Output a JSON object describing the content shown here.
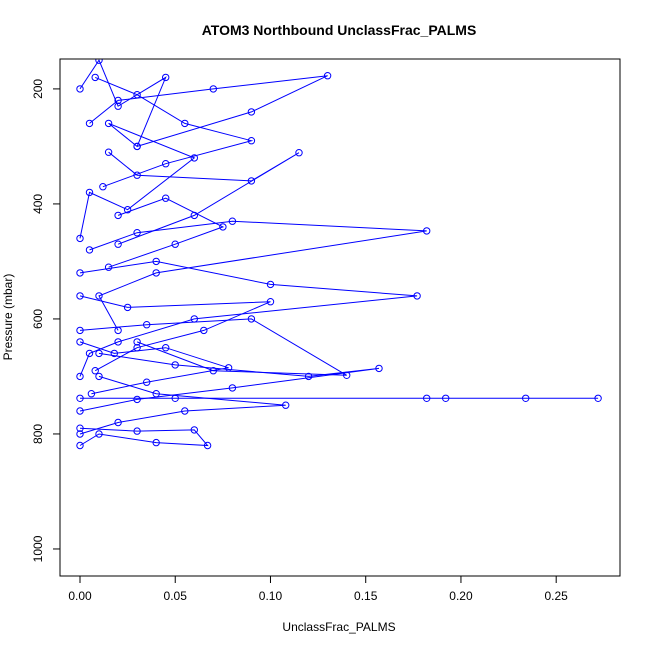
{
  "chart_data": {
    "type": "line",
    "title": "ATOM3 Northbound UnclassFrac_PALMS",
    "xlabel": "UnclassFrac_PALMS",
    "ylabel": "Pressure (mbar)",
    "xlim": [
      -0.0105,
      0.2835
    ],
    "ylim": [
      1047,
      148
    ],
    "y_reversed": true,
    "x_ticks": [
      0.0,
      0.05,
      0.1,
      0.15,
      0.2,
      0.25
    ],
    "x_tick_labels": [
      "0.00",
      "0.05",
      "0.10",
      "0.15",
      "0.20",
      "0.25"
    ],
    "y_ticks": [
      200,
      400,
      600,
      800,
      1000
    ],
    "y_tick_labels": [
      "200",
      "400",
      "600",
      "800",
      "1000"
    ],
    "grid": false,
    "legend": "none",
    "series_color": "#0000ff",
    "marker": "open-circle",
    "series": [
      {
        "x": [
          0.0,
          0.01,
          0.02,
          0.045,
          0.03,
          0.015,
          0.06,
          0.025,
          0.005,
          0.0
        ],
        "y": [
          200,
          150,
          230,
          180,
          300,
          260,
          320,
          410,
          380,
          460
        ]
      },
      {
        "x": [
          0.005,
          0.03,
          0.08,
          0.182,
          0.04,
          0.01,
          0.02
        ],
        "y": [
          480,
          450,
          430,
          447,
          520,
          560,
          620
        ]
      },
      {
        "x": [
          0.0,
          0.04,
          0.1,
          0.177,
          0.06,
          0.02,
          0.005,
          0.0
        ],
        "y": [
          520,
          500,
          540,
          560,
          600,
          640,
          660,
          700
        ]
      },
      {
        "x": [
          0.01,
          0.05,
          0.12,
          0.157,
          0.08,
          0.03,
          0.0
        ],
        "y": [
          660,
          680,
          700,
          686,
          720,
          740,
          760
        ]
      },
      {
        "x": [
          0.0,
          0.05,
          0.182,
          0.192,
          0.234,
          0.272
        ],
        "y": [
          738,
          738,
          738,
          738,
          738,
          738
        ]
      },
      {
        "x": [
          0.0,
          0.03,
          0.06,
          0.067,
          0.04,
          0.01,
          0.0
        ],
        "y": [
          790,
          795,
          793,
          820,
          815,
          800,
          820
        ]
      },
      {
        "x": [
          0.005,
          0.02,
          0.07,
          0.13,
          0.09,
          0.03
        ],
        "y": [
          260,
          220,
          200,
          177,
          240,
          300
        ]
      },
      {
        "x": [
          0.015,
          0.03,
          0.09,
          0.115,
          0.06,
          0.02
        ],
        "y": [
          310,
          350,
          360,
          311,
          420,
          470
        ]
      },
      {
        "x": [
          0.0,
          0.025,
          0.1,
          0.065,
          0.03,
          0.008
        ],
        "y": [
          560,
          580,
          570,
          620,
          650,
          690
        ]
      },
      {
        "x": [
          0.01,
          0.04,
          0.108,
          0.055,
          0.02,
          0.0
        ],
        "y": [
          700,
          730,
          750,
          760,
          780,
          800
        ]
      },
      {
        "x": [
          0.0,
          0.035,
          0.09,
          0.14,
          0.07,
          0.03
        ],
        "y": [
          620,
          610,
          600,
          698,
          690,
          640
        ]
      },
      {
        "x": [
          0.02,
          0.045,
          0.075,
          0.05,
          0.015
        ],
        "y": [
          420,
          390,
          440,
          470,
          510
        ]
      },
      {
        "x": [
          0.008,
          0.03,
          0.055,
          0.09,
          0.045,
          0.012
        ],
        "y": [
          180,
          210,
          260,
          290,
          330,
          370
        ]
      },
      {
        "x": [
          0.0,
          0.018,
          0.045,
          0.078,
          0.035,
          0.006
        ],
        "y": [
          640,
          660,
          650,
          685,
          710,
          730
        ]
      }
    ]
  }
}
